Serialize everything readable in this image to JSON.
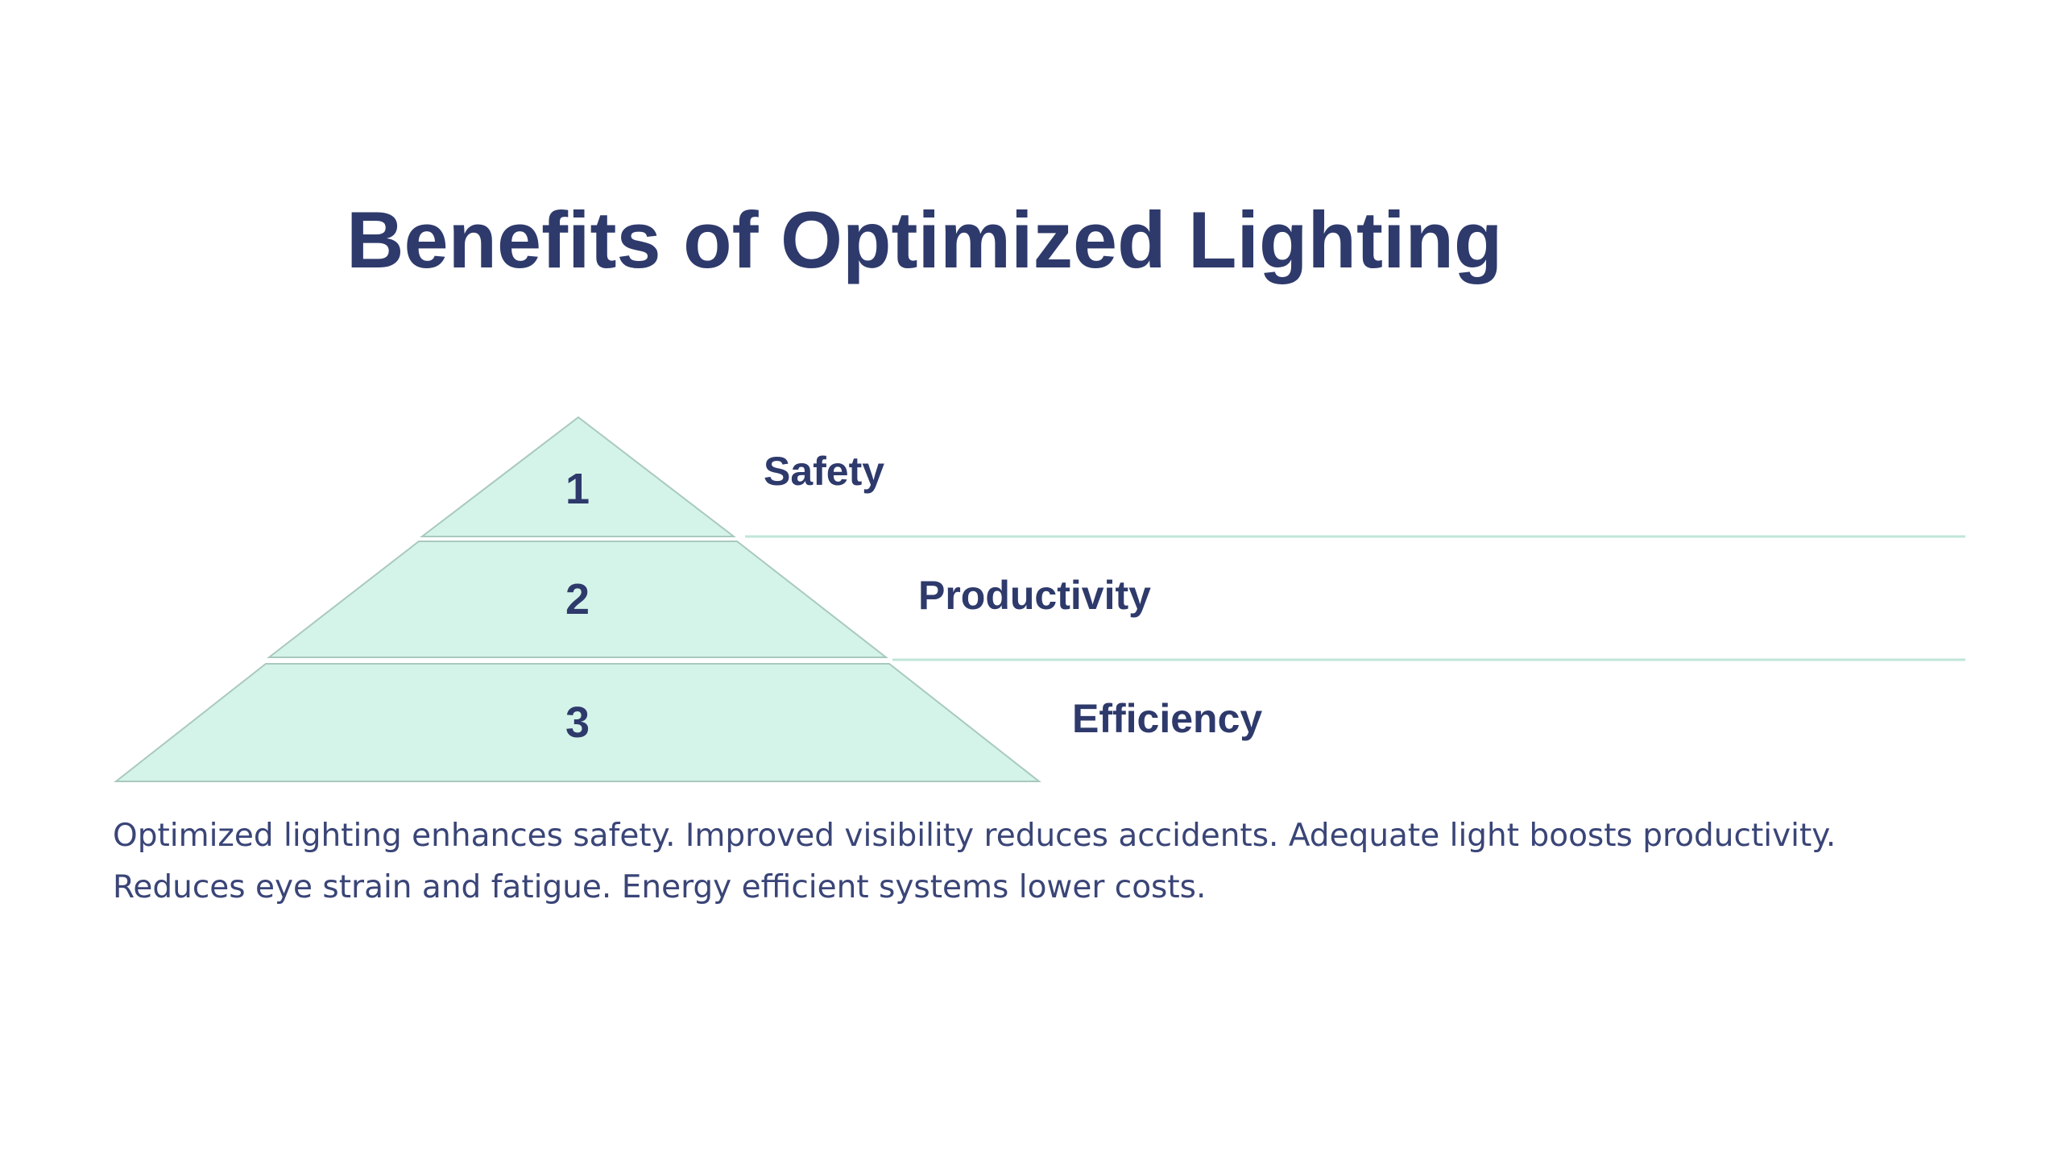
{
  "slide": {
    "title": "Benefits of Optimized Lighting",
    "description": "Optimized lighting enhances safety. Improved visibility reduces accidents. Adequate light boosts productivity. Reduces eye strain and fatigue. Energy efficient systems lower costs."
  },
  "pyramid": {
    "tiers": [
      {
        "number": "1",
        "label": "Safety"
      },
      {
        "number": "2",
        "label": "Productivity"
      },
      {
        "number": "3",
        "label": "Efficiency"
      }
    ]
  },
  "colors": {
    "text": "#2e3a6b",
    "tier_fill": "#d5f4e9",
    "tier_stroke": "#a9c9bd",
    "divider": "#bfe6d8"
  }
}
